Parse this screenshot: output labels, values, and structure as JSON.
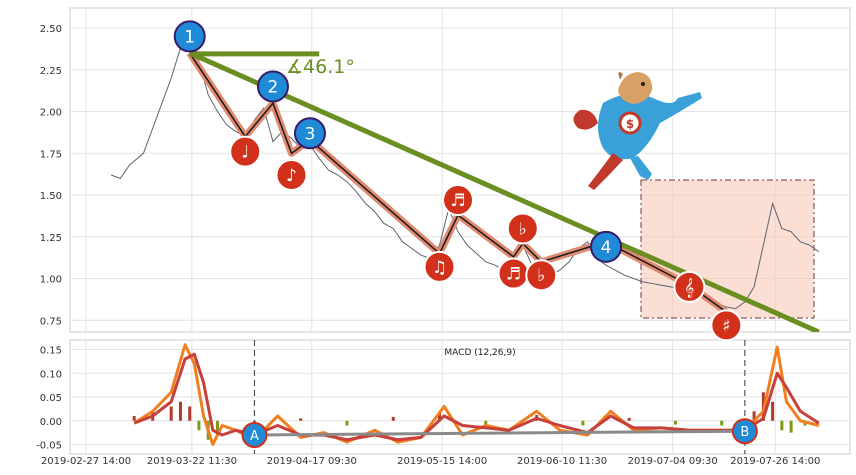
{
  "chart_data": [
    {
      "type": "line",
      "panel": "price",
      "ylim": [
        0.68,
        2.62
      ],
      "yticks": [
        "0.75",
        "1.00",
        "1.25",
        "1.50",
        "1.75",
        "2.00",
        "2.25",
        "2.50"
      ],
      "grid": true,
      "series": [
        {
          "color": "#5a6472",
          "x": [
            "2019-03-05",
            "2019-03-07",
            "2019-03-09",
            "2019-03-12",
            "2019-03-14",
            "2019-03-16",
            "2019-03-18",
            "2019-03-20",
            "2019-03-22",
            "2019-03-24",
            "2019-03-26",
            "2019-03-28",
            "2019-03-30",
            "2019-04-01",
            "2019-04-03",
            "2019-04-05",
            "2019-04-07",
            "2019-04-09",
            "2019-04-11",
            "2019-04-13",
            "2019-04-15",
            "2019-04-17",
            "2019-04-19",
            "2019-04-21",
            "2019-04-23",
            "2019-04-25",
            "2019-04-27",
            "2019-04-29",
            "2019-05-01",
            "2019-05-03",
            "2019-05-05",
            "2019-05-07",
            "2019-05-09",
            "2019-05-11",
            "2019-05-13",
            "2019-05-15",
            "2019-05-17",
            "2019-05-19",
            "2019-05-21",
            "2019-05-23",
            "2019-05-25",
            "2019-05-27",
            "2019-05-29",
            "2019-05-31",
            "2019-06-02",
            "2019-06-04",
            "2019-06-06",
            "2019-06-08",
            "2019-06-10",
            "2019-06-12",
            "2019-06-14",
            "2019-06-16",
            "2019-06-18",
            "2019-06-20",
            "2019-06-22",
            "2019-06-24",
            "2019-06-26",
            "2019-06-28",
            "2019-06-30",
            "2019-07-02",
            "2019-07-04",
            "2019-07-06",
            "2019-07-08",
            "2019-07-10",
            "2019-07-12",
            "2019-07-14",
            "2019-07-16",
            "2019-07-18",
            "2019-07-20",
            "2019-07-22",
            "2019-07-24",
            "2019-07-26",
            "2019-07-28",
            "2019-07-30",
            "2019-08-01",
            "2019-08-03",
            "2019-08-05"
          ],
          "values": [
            1.62,
            1.6,
            1.68,
            1.75,
            1.9,
            2.05,
            2.2,
            2.38,
            2.52,
            2.3,
            2.1,
            2.0,
            1.92,
            1.88,
            1.85,
            1.95,
            2.02,
            1.82,
            1.88,
            1.84,
            1.78,
            1.8,
            1.72,
            1.65,
            1.62,
            1.58,
            1.52,
            1.45,
            1.4,
            1.33,
            1.3,
            1.22,
            1.18,
            1.14,
            1.12,
            1.2,
            1.42,
            1.28,
            1.2,
            1.15,
            1.1,
            1.08,
            1.05,
            1.12,
            1.2,
            1.08,
            1.04,
            1.02,
            1.05,
            1.1,
            1.18,
            1.22,
            1.12,
            1.08,
            1.05,
            1.02,
            1.0,
            0.98,
            0.97,
            0.96,
            0.95,
            0.94,
            0.93,
            0.9,
            0.86,
            0.85,
            0.83,
            0.82,
            0.86,
            0.95,
            1.2,
            1.45,
            1.3,
            1.28,
            1.22,
            1.2,
            1.16
          ]
        }
      ],
      "annotations": [
        {
          "text": "1",
          "color": "#1f8ad6",
          "x": "2019-03-22",
          "y": 2.45
        },
        {
          "text": "2",
          "color": "#1f8ad6",
          "x": "2019-04-09",
          "y": 2.15
        },
        {
          "text": "3",
          "color": "#1f8ad6",
          "x": "2019-04-17",
          "y": 1.87
        },
        {
          "text": "4",
          "color": "#1f8ad6",
          "x": "2019-06-20",
          "y": 1.19
        },
        {
          "text": "♩",
          "color": "#d1301a",
          "x": "2019-04-03",
          "y": 1.76
        },
        {
          "text": "♪",
          "color": "#d1301a",
          "x": "2019-04-13",
          "y": 1.62
        },
        {
          "text": "♬",
          "color": "#d1301a",
          "x": "2019-05-19",
          "y": 1.47
        },
        {
          "text": "♫",
          "color": "#d1301a",
          "x": "2019-05-15",
          "y": 1.07
        },
        {
          "text": "♬",
          "color": "#d1301a",
          "x": "2019-05-31",
          "y": 1.03
        },
        {
          "text": "♭",
          "color": "#d1301a",
          "x": "2019-06-02",
          "y": 1.3
        },
        {
          "text": "♭",
          "color": "#d1301a",
          "x": "2019-06-06",
          "y": 1.02
        },
        {
          "text": "♯",
          "color": "#d1301a",
          "x": "2019-07-16",
          "y": 0.72
        },
        {
          "text": "𝄞",
          "color": "#d1301a",
          "x": "2019-07-08",
          "y": 0.95
        }
      ],
      "angle_label": "∡46.1°",
      "trendline_color": "#6b8e23"
    },
    {
      "type": "line",
      "panel": "macd",
      "title": "MACD (12,26,9)",
      "ylim": [
        -0.07,
        0.17
      ],
      "yticks": [
        "-0.05",
        "0.00",
        "0.05",
        "0.10",
        "0.15"
      ],
      "xticks": [
        "2019-02-27 14:00",
        "2019-03-22 11:30",
        "2019-04-17 09:30",
        "2019-05-15 14:00",
        "2019-06-10 11:30",
        "2019-07-04 09:30",
        "2019-07-26 14:00"
      ],
      "grid": true,
      "markers": [
        {
          "text": "A",
          "x": "2019-04-05",
          "y": -0.03
        },
        {
          "text": "B",
          "x": "2019-07-20",
          "y": -0.022
        }
      ],
      "series": [
        {
          "color": "#f07f1f",
          "x": [
            "2019-03-10",
            "2019-03-14",
            "2019-03-18",
            "2019-03-21",
            "2019-03-23",
            "2019-03-25",
            "2019-03-27",
            "2019-03-29",
            "2019-04-01",
            "2019-04-05",
            "2019-04-10",
            "2019-04-15",
            "2019-04-20",
            "2019-04-25",
            "2019-05-01",
            "2019-05-06",
            "2019-05-11",
            "2019-05-16",
            "2019-05-20",
            "2019-05-25",
            "2019-05-30",
            "2019-06-05",
            "2019-06-10",
            "2019-06-16",
            "2019-06-21",
            "2019-06-26",
            "2019-07-02",
            "2019-07-08",
            "2019-07-14",
            "2019-07-20",
            "2019-07-24",
            "2019-07-27",
            "2019-07-29",
            "2019-08-01",
            "2019-08-05"
          ],
          "values": [
            -0.005,
            0.02,
            0.06,
            0.16,
            0.12,
            0.01,
            -0.05,
            -0.01,
            -0.02,
            -0.04,
            0.01,
            -0.035,
            -0.025,
            -0.045,
            -0.02,
            -0.045,
            -0.035,
            0.03,
            -0.03,
            -0.01,
            -0.02,
            0.02,
            -0.02,
            -0.03,
            0.02,
            -0.02,
            -0.015,
            -0.02,
            -0.02,
            -0.02,
            0.02,
            0.155,
            0.04,
            0.0,
            -0.01
          ]
        },
        {
          "color": "#c8403a",
          "x": [
            "2019-03-10",
            "2019-03-14",
            "2019-03-18",
            "2019-03-21",
            "2019-03-23",
            "2019-03-25",
            "2019-03-27",
            "2019-03-29",
            "2019-04-01",
            "2019-04-05",
            "2019-04-10",
            "2019-04-15",
            "2019-04-20",
            "2019-04-25",
            "2019-05-01",
            "2019-05-06",
            "2019-05-11",
            "2019-05-16",
            "2019-05-20",
            "2019-05-25",
            "2019-05-30",
            "2019-06-05",
            "2019-06-10",
            "2019-06-16",
            "2019-06-21",
            "2019-06-26",
            "2019-07-02",
            "2019-07-08",
            "2019-07-14",
            "2019-07-20",
            "2019-07-24",
            "2019-07-27",
            "2019-07-29",
            "2019-08-01",
            "2019-08-05"
          ],
          "values": [
            -0.005,
            0.01,
            0.04,
            0.13,
            0.14,
            0.08,
            -0.02,
            -0.03,
            -0.02,
            -0.03,
            -0.01,
            -0.03,
            -0.03,
            -0.04,
            -0.03,
            -0.04,
            -0.035,
            0.01,
            -0.01,
            -0.015,
            -0.02,
            0.005,
            -0.01,
            -0.025,
            0.01,
            -0.015,
            -0.015,
            -0.02,
            -0.02,
            -0.02,
            0.005,
            0.1,
            0.07,
            0.02,
            -0.005
          ]
        }
      ],
      "histogram": {
        "color_pos": "#b03a2e",
        "color_neg": "#7a9a1a",
        "x": [
          "2019-03-10",
          "2019-03-14",
          "2019-03-18",
          "2019-03-20",
          "2019-03-22",
          "2019-03-24",
          "2019-03-26",
          "2019-03-28",
          "2019-04-05",
          "2019-04-15",
          "2019-04-25",
          "2019-05-05",
          "2019-05-15",
          "2019-05-25",
          "2019-06-05",
          "2019-06-15",
          "2019-06-25",
          "2019-07-05",
          "2019-07-15",
          "2019-07-22",
          "2019-07-24",
          "2019-07-26",
          "2019-07-28",
          "2019-07-30",
          "2019-08-02"
        ],
        "values": [
          0.01,
          0.02,
          0.03,
          0.04,
          0.03,
          -0.02,
          -0.04,
          -0.03,
          -0.01,
          0.005,
          -0.01,
          0.008,
          0.015,
          -0.008,
          0.012,
          -0.01,
          0.006,
          -0.008,
          -0.01,
          0.02,
          0.06,
          0.04,
          -0.02,
          -0.025,
          -0.01
        ]
      }
    }
  ]
}
